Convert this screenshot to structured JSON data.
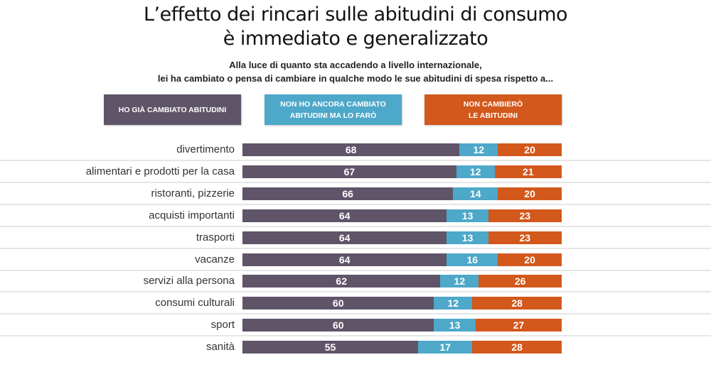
{
  "chart_data": {
    "type": "bar",
    "orientation": "horizontal",
    "stacked": true,
    "title": "L’effetto dei rincari sulle abitudini di consumo è immediato e generalizzato",
    "title_lines": [
      "L’effetto dei rincari sulle abitudini di consumo",
      "è immediato e generalizzato"
    ],
    "subtitle_lines": [
      "Alla luce di quanto sta accadendo a livello internazionale,",
      "lei ha cambiato o pensa di cambiare in qualche modo le sue abitudini di spesa rispetto a..."
    ],
    "xlabel": "",
    "ylabel": "",
    "xlim": [
      0,
      100
    ],
    "grid": false,
    "legend_position": "top",
    "categories": [
      "divertimento",
      "alimentari e prodotti per la casa",
      "ristoranti, pizzerie",
      "acquisti importanti",
      "trasporti",
      "vacanze",
      "servizi alla persona",
      "consumi culturali",
      "sport",
      "sanità"
    ],
    "series": [
      {
        "name": "HO GIÀ CAMBIATO ABITUDINI",
        "legend_label": "HO GIÀ CAMBIATO ABITUDINI",
        "color": "#5f5468",
        "values": [
          68,
          67,
          66,
          64,
          64,
          64,
          62,
          60,
          60,
          55
        ]
      },
      {
        "name": "NON HO ANCORA CAMBIATO ABITUDINI MA LO FARÒ",
        "legend_label": "NON HO ANCORA CAMBIATO\nABITUDINI MA LO FARÒ",
        "color": "#4ea8c9",
        "values": [
          12,
          12,
          14,
          13,
          13,
          16,
          12,
          12,
          13,
          17
        ]
      },
      {
        "name": "NON CAMBIERÒ LE ABITUDINI",
        "legend_label": "NON CAMBIERÒ\nLE ABITUDINI",
        "color": "#d2581c",
        "values": [
          20,
          21,
          20,
          23,
          23,
          20,
          26,
          28,
          27,
          28
        ]
      }
    ]
  }
}
